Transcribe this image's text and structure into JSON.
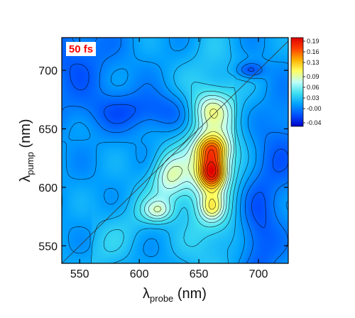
{
  "chart_data": {
    "type": "heatmap",
    "title": "",
    "annotation": "50 fs",
    "xlabel": {
      "symbol": "λ",
      "subscript": "probe",
      "unit": "(nm)"
    },
    "ylabel": {
      "symbol": "λ",
      "subscript": "pump",
      "unit": "(nm)"
    },
    "xlim": [
      535,
      725
    ],
    "ylim": [
      535,
      728
    ],
    "xticks": [
      "550",
      "600",
      "650",
      "700"
    ],
    "yticks": [
      "550",
      "600",
      "650",
      "700"
    ],
    "xtick_values": [
      550,
      600,
      650,
      700
    ],
    "ytick_values": [
      550,
      600,
      650,
      700
    ],
    "colorbar": {
      "ticks": [
        "0.19",
        "0.16",
        "0.13",
        "0.09",
        "0.06",
        "0.03",
        "-0.00",
        "-0.04"
      ],
      "range": [
        -0.05,
        0.2
      ],
      "colors": [
        "#0000c8",
        "#0050ff",
        "#00a0ff",
        "#40e0f0",
        "#c0fff8",
        "#ffff60",
        "#ffb000",
        "#ff4000",
        "#dd0000"
      ]
    },
    "diagonal": true,
    "features": [
      {
        "probe": 661,
        "pump": 613,
        "value": 0.19,
        "description": "main peak"
      },
      {
        "probe": 661,
        "pump": 633,
        "value": 0.16
      },
      {
        "probe": 661,
        "pump": 583,
        "value": 0.13
      },
      {
        "probe": 660,
        "pump": 667,
        "value": 0.05
      },
      {
        "probe": 625,
        "pump": 610,
        "value": 0.05
      },
      {
        "probe": 616,
        "pump": 580,
        "value": 0.05
      },
      {
        "probe": 693,
        "pump": 700,
        "value": -0.04,
        "description": "negative spot"
      },
      {
        "probe": 700,
        "pump": 560,
        "value": -0.03,
        "description": "negative band"
      }
    ]
  }
}
